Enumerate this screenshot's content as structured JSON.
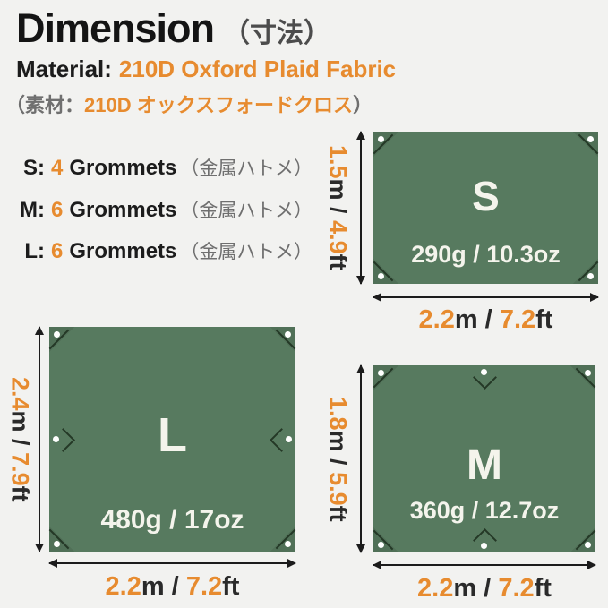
{
  "colors": {
    "accent_orange": "#e78b2f",
    "tarp_green": "#577a5f",
    "seam_dark": "#243826",
    "text_dark": "#1c1c1c",
    "text_gray": "#6f6f6f",
    "background": "#f2f2f0"
  },
  "header": {
    "title": "Dimension",
    "title_jp": "（寸法）",
    "material_label": "Material:",
    "material_value": "210D Oxford Plaid Fabric",
    "material_jp_open": "（素材：",
    "material_jp_value": "210D  オックスフォードクロス",
    "material_jp_close": "）"
  },
  "grommet_list": [
    {
      "size": "S:",
      "count": "4",
      "label": "Grommets",
      "jp": "（金属ハトメ）"
    },
    {
      "size": "M:",
      "count": "6",
      "label": "Grommets",
      "jp": "（金属ハトメ）"
    },
    {
      "size": "L:",
      "count": "6",
      "label": "Grommets",
      "jp": "（金属ハトメ）"
    }
  ],
  "units": {
    "mid": "m / ",
    "end": "ft"
  },
  "tarps": [
    {
      "label": "S",
      "weight": "290g /  10.3oz",
      "height": {
        "m": "1.5",
        "ft": "4.9"
      },
      "width": {
        "m": "2.2",
        "ft": "7.2"
      }
    },
    {
      "label": "L",
      "weight": "480g /  17oz",
      "height": {
        "m": "2.4",
        "ft": "7.9"
      },
      "width": {
        "m": "2.2",
        "ft": "7.2"
      }
    },
    {
      "label": "M",
      "weight": "360g /  12.7oz",
      "height": {
        "m": "1.8",
        "ft": "5.9"
      },
      "width": {
        "m": "2.2",
        "ft": "7.2"
      }
    }
  ]
}
